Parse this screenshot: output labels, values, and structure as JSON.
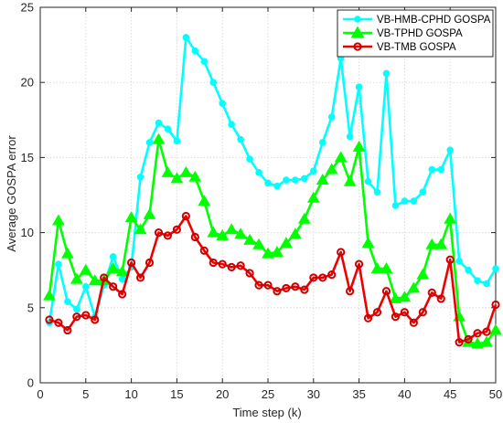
{
  "chart_data": {
    "type": "line",
    "title": "",
    "xlabel": "Time step (k)",
    "ylabel": "Average GOSPA error",
    "xlim": [
      0,
      50
    ],
    "ylim": [
      0,
      25
    ],
    "xticks": [
      0,
      5,
      10,
      15,
      20,
      25,
      30,
      35,
      40,
      45,
      50
    ],
    "yticks": [
      0,
      5,
      10,
      15,
      20,
      25
    ],
    "grid": true,
    "legend_position": "top-right",
    "x": [
      1,
      2,
      3,
      4,
      5,
      6,
      7,
      8,
      9,
      10,
      11,
      12,
      13,
      14,
      15,
      16,
      17,
      18,
      19,
      20,
      21,
      22,
      23,
      24,
      25,
      26,
      27,
      28,
      29,
      30,
      31,
      32,
      33,
      34,
      35,
      36,
      37,
      38,
      39,
      40,
      41,
      42,
      43,
      44,
      45,
      46,
      47,
      48,
      49,
      50
    ],
    "series": [
      {
        "name": "VB-HMB-CPHD GOSPA",
        "color": "#00ffff",
        "marker": "circle",
        "values": [
          4.0,
          7.9,
          5.4,
          4.9,
          6.4,
          4.4,
          6.5,
          8.4,
          6.9,
          7.7,
          13.7,
          16.0,
          17.3,
          16.9,
          16.1,
          23.0,
          22.1,
          21.4,
          20.0,
          18.6,
          17.2,
          16.2,
          14.9,
          14.0,
          13.3,
          13.1,
          13.5,
          13.5,
          13.6,
          14.1,
          16.0,
          17.7,
          21.6,
          16.4,
          19.7,
          13.4,
          12.7,
          20.6,
          11.8,
          12.1,
          12.1,
          12.7,
          14.2,
          14.2,
          15.5,
          8.1,
          7.5,
          6.8,
          6.6,
          7.6
        ]
      },
      {
        "name": "VB-TPHD GOSPA",
        "color": "#00ff00",
        "marker": "triangle",
        "values": [
          5.8,
          10.8,
          8.6,
          6.9,
          7.5,
          6.8,
          6.8,
          7.6,
          7.4,
          11.0,
          10.2,
          11.2,
          16.2,
          14.0,
          13.6,
          14.0,
          13.7,
          12.1,
          10.0,
          9.8,
          10.2,
          9.9,
          9.5,
          9.2,
          8.6,
          8.7,
          9.3,
          9.9,
          10.9,
          12.3,
          13.5,
          14.2,
          15.0,
          13.4,
          15.7,
          9.3,
          7.6,
          7.6,
          5.6,
          5.7,
          6.3,
          7.2,
          9.2,
          9.2,
          10.9,
          4.4,
          2.7,
          2.6,
          2.7,
          3.5
        ]
      },
      {
        "name": "VB-TMB GOSPA",
        "color": "#ff0000",
        "marker": "circle",
        "values": [
          4.2,
          4.0,
          3.5,
          4.4,
          4.5,
          4.2,
          7.0,
          6.4,
          5.9,
          8.0,
          7.0,
          8.0,
          10.0,
          9.8,
          10.2,
          11.1,
          9.7,
          8.8,
          8.0,
          7.9,
          7.7,
          7.8,
          7.3,
          6.5,
          6.5,
          6.1,
          6.3,
          6.4,
          6.2,
          7.0,
          7.0,
          7.2,
          8.7,
          6.1,
          7.9,
          4.3,
          4.7,
          6.1,
          4.4,
          4.7,
          4.0,
          4.7,
          6.0,
          5.6,
          8.2,
          2.7,
          2.9,
          3.3,
          3.4,
          5.2
        ]
      }
    ]
  }
}
